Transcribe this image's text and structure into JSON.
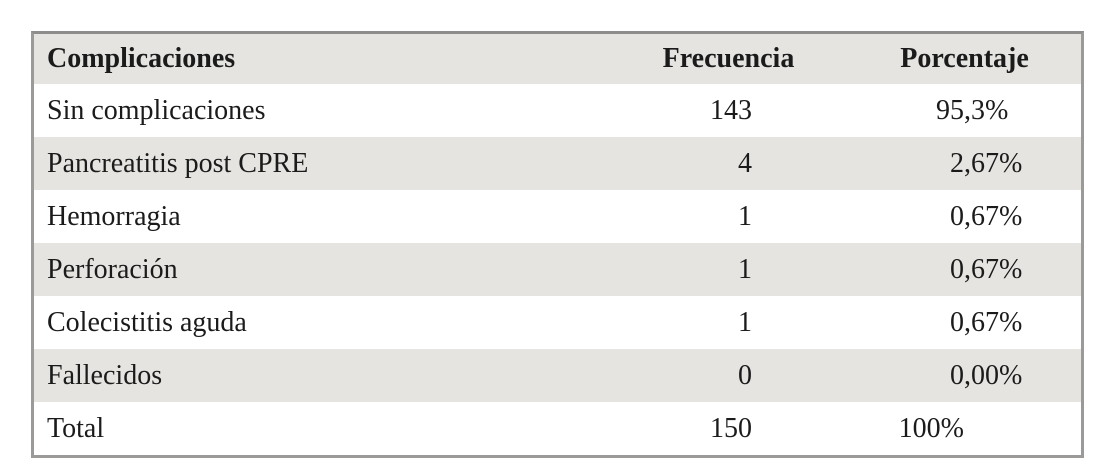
{
  "table": {
    "columns": [
      "Complicaciones",
      "Frecuencia",
      "Porcentaje"
    ],
    "rows": [
      {
        "label": "Sin complicaciones",
        "frequency": "143",
        "percentage": "95,3%"
      },
      {
        "label": "Pancreatitis post CPRE",
        "frequency": "4",
        "percentage": "2,67%"
      },
      {
        "label": "Hemorragia",
        "frequency": "1",
        "percentage": "0,67%"
      },
      {
        "label": "Perforación",
        "frequency": "1",
        "percentage": "0,67%"
      },
      {
        "label": "Colecistitis aguda",
        "frequency": "1",
        "percentage": "0,67%"
      },
      {
        "label": "Fallecidos",
        "frequency": "0",
        "percentage": "0,00%"
      },
      {
        "label": "Total",
        "frequency": "150",
        "percentage": "100%"
      }
    ],
    "colors": {
      "stripe_background": "#e5e4e1",
      "border": "#9b9a98",
      "text": "#1b1b1b",
      "row_background": "#ffffff"
    }
  }
}
